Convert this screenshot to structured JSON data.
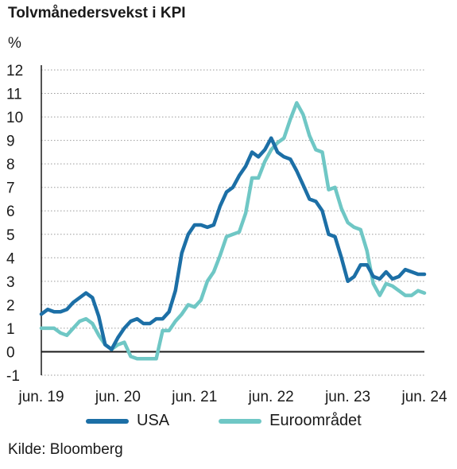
{
  "chart_data": {
    "type": "line",
    "title": "Tolvmånedersvekst i KPI",
    "ylabel": "%",
    "xlabel": "",
    "ylim": [
      -1,
      12
    ],
    "yticks": [
      -1,
      0,
      1,
      2,
      3,
      4,
      5,
      6,
      7,
      8,
      9,
      10,
      11,
      12
    ],
    "xlim": [
      "2019-06",
      "2024-06"
    ],
    "xtick_labels": [
      "jun. 19",
      "jun. 20",
      "jun. 21",
      "jun. 22",
      "jun. 23",
      "jun. 24"
    ],
    "grid": "horizontal dotted",
    "legend_position": "bottom",
    "source": "Kilde: Bloomberg",
    "series": [
      {
        "name": "USA",
        "color": "#1c6fa6",
        "x": [
          "2019-06",
          "2019-07",
          "2019-08",
          "2019-09",
          "2019-10",
          "2019-11",
          "2019-12",
          "2020-01",
          "2020-02",
          "2020-03",
          "2020-04",
          "2020-05",
          "2020-06",
          "2020-07",
          "2020-08",
          "2020-09",
          "2020-10",
          "2020-11",
          "2020-12",
          "2021-01",
          "2021-02",
          "2021-03",
          "2021-04",
          "2021-05",
          "2021-06",
          "2021-07",
          "2021-08",
          "2021-09",
          "2021-10",
          "2021-11",
          "2021-12",
          "2022-01",
          "2022-02",
          "2022-03",
          "2022-04",
          "2022-05",
          "2022-06",
          "2022-07",
          "2022-08",
          "2022-09",
          "2022-10",
          "2022-11",
          "2022-12",
          "2023-01",
          "2023-02",
          "2023-03",
          "2023-04",
          "2023-05",
          "2023-06",
          "2023-07",
          "2023-08",
          "2023-09",
          "2023-10",
          "2023-11",
          "2023-12",
          "2024-01",
          "2024-02",
          "2024-03",
          "2024-04",
          "2024-05",
          "2024-06"
        ],
        "values": [
          1.6,
          1.8,
          1.7,
          1.7,
          1.8,
          2.1,
          2.3,
          2.5,
          2.3,
          1.5,
          0.3,
          0.1,
          0.6,
          1.0,
          1.3,
          1.4,
          1.2,
          1.2,
          1.4,
          1.4,
          1.7,
          2.6,
          4.2,
          5.0,
          5.4,
          5.4,
          5.3,
          5.4,
          6.2,
          6.8,
          7.0,
          7.5,
          7.9,
          8.5,
          8.3,
          8.6,
          9.1,
          8.5,
          8.3,
          8.2,
          7.7,
          7.1,
          6.5,
          6.4,
          6.0,
          5.0,
          4.9,
          4.0,
          3.0,
          3.2,
          3.7,
          3.7,
          3.2,
          3.1,
          3.4,
          3.1,
          3.2,
          3.5,
          3.4,
          3.3,
          3.3
        ]
      },
      {
        "name": "Euroområdet",
        "color": "#6fc7c5",
        "x": [
          "2019-06",
          "2019-07",
          "2019-08",
          "2019-09",
          "2019-10",
          "2019-11",
          "2019-12",
          "2020-01",
          "2020-02",
          "2020-03",
          "2020-04",
          "2020-05",
          "2020-06",
          "2020-07",
          "2020-08",
          "2020-09",
          "2020-10",
          "2020-11",
          "2020-12",
          "2021-01",
          "2021-02",
          "2021-03",
          "2021-04",
          "2021-05",
          "2021-06",
          "2021-07",
          "2021-08",
          "2021-09",
          "2021-10",
          "2021-11",
          "2021-12",
          "2022-01",
          "2022-02",
          "2022-03",
          "2022-04",
          "2022-05",
          "2022-06",
          "2022-07",
          "2022-08",
          "2022-09",
          "2022-10",
          "2022-11",
          "2022-12",
          "2023-01",
          "2023-02",
          "2023-03",
          "2023-04",
          "2023-05",
          "2023-06",
          "2023-07",
          "2023-08",
          "2023-09",
          "2023-10",
          "2023-11",
          "2023-12",
          "2024-01",
          "2024-02",
          "2024-03",
          "2024-04",
          "2024-05",
          "2024-06"
        ],
        "values": [
          1.0,
          1.0,
          1.0,
          0.8,
          0.7,
          1.0,
          1.3,
          1.4,
          1.2,
          0.7,
          0.3,
          0.1,
          0.3,
          0.4,
          -0.2,
          -0.3,
          -0.3,
          -0.3,
          -0.3,
          0.9,
          0.9,
          1.3,
          1.6,
          2.0,
          1.9,
          2.2,
          3.0,
          3.4,
          4.1,
          4.9,
          5.0,
          5.1,
          5.9,
          7.4,
          7.4,
          8.1,
          8.6,
          8.9,
          9.1,
          9.9,
          10.6,
          10.1,
          9.2,
          8.6,
          8.5,
          6.9,
          7.0,
          6.1,
          5.5,
          5.3,
          5.2,
          4.3,
          2.9,
          2.4,
          2.9,
          2.8,
          2.6,
          2.4,
          2.4,
          2.6,
          2.5
        ]
      }
    ]
  }
}
